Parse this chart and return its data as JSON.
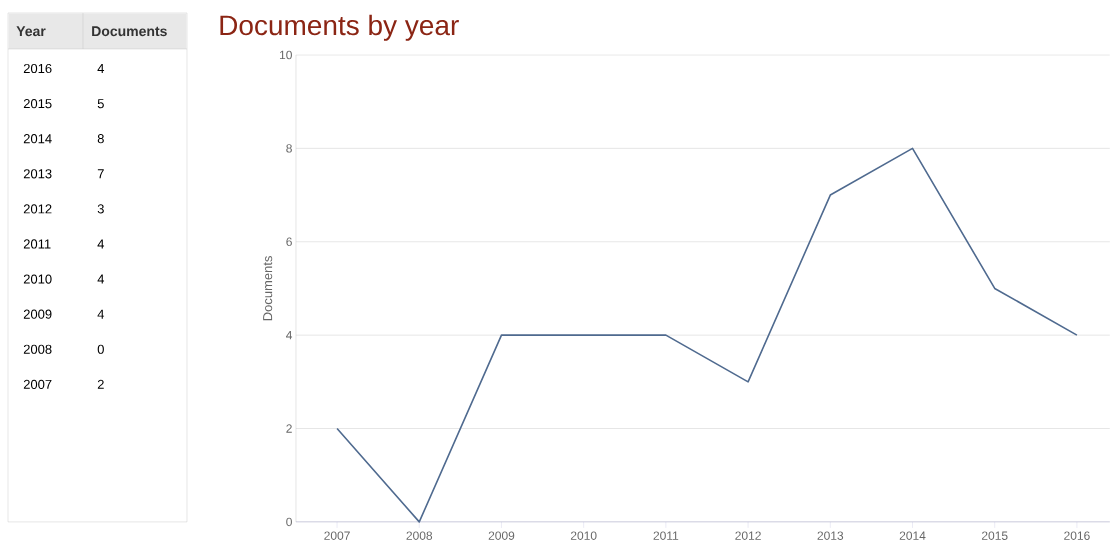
{
  "chart_data": {
    "type": "line",
    "title": "Documents by year",
    "ylabel": "Documents",
    "categories": [
      "2007",
      "2008",
      "2009",
      "2010",
      "2011",
      "2012",
      "2013",
      "2014",
      "2015",
      "2016"
    ],
    "series": [
      {
        "color": "#4f6a8f",
        "values": [
          2,
          0,
          4,
          4,
          4,
          3,
          7,
          8,
          5,
          4
        ]
      }
    ],
    "ylim": [
      0,
      10
    ],
    "yticks": [
      0,
      2,
      4,
      6,
      8,
      10
    ],
    "grid": "y",
    "marker": "none",
    "line_style": "solid",
    "annotations": [
      "Year",
      "4",
      "5",
      "8",
      "7",
      "3",
      "4",
      "4",
      "4",
      "0",
      "2"
    ]
  }
}
